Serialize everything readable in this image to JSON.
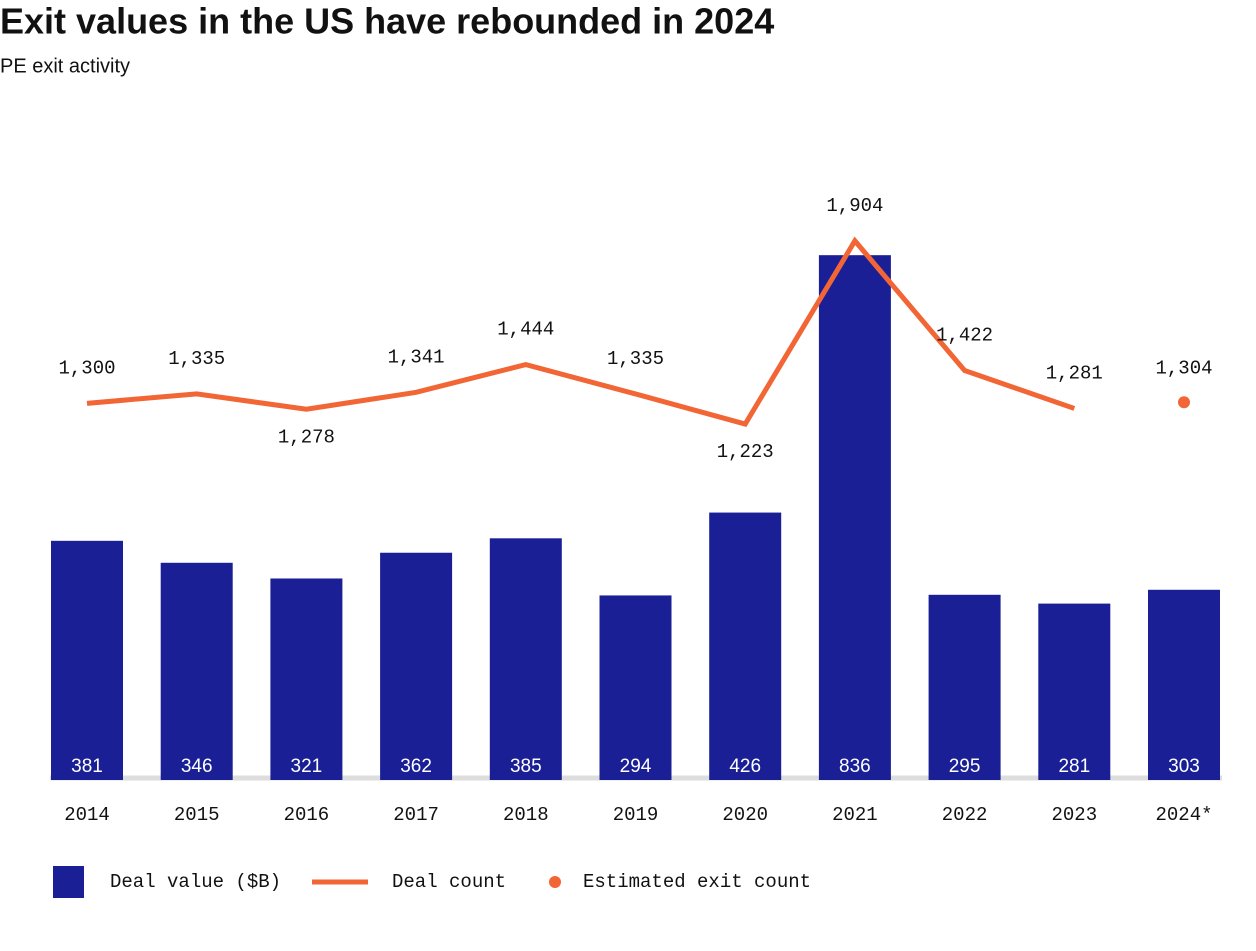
{
  "chart_data": {
    "type": "bar-line",
    "title": "Exit values in the US have rebounded in 2024",
    "subtitle": "PE exit activity",
    "categories": [
      "2014",
      "2015",
      "2016",
      "2017",
      "2018",
      "2019",
      "2020",
      "2021",
      "2022",
      "2023",
      "2024*"
    ],
    "series": [
      {
        "name": "Deal value ($B)",
        "type": "bar",
        "color": "#1a1f96",
        "values": [
          381,
          346,
          321,
          362,
          385,
          294,
          426,
          836,
          295,
          281,
          303
        ]
      },
      {
        "name": "Deal count",
        "type": "line",
        "axis": "y2",
        "color": "#f26535",
        "values": [
          1300,
          1335,
          1278,
          1341,
          1444,
          1335,
          1223,
          1904,
          1422,
          1281,
          null
        ],
        "value_labels": [
          "1,300",
          "1,335",
          "1,278",
          "1,341",
          "1,444",
          "1,335",
          "1,223",
          "1,904",
          "1,422",
          "1,281",
          null
        ]
      },
      {
        "name": "Estimated exit count",
        "type": "dot",
        "axis": "y2",
        "color": "#f26535",
        "values": [
          null,
          null,
          null,
          null,
          null,
          null,
          null,
          null,
          null,
          null,
          1304
        ],
        "value_labels": [
          null,
          null,
          null,
          null,
          null,
          null,
          null,
          null,
          null,
          null,
          "1,304"
        ]
      }
    ],
    "ylim": [
      0,
      900
    ],
    "y2lim": [
      -100,
      2000
    ],
    "grid": false
  }
}
